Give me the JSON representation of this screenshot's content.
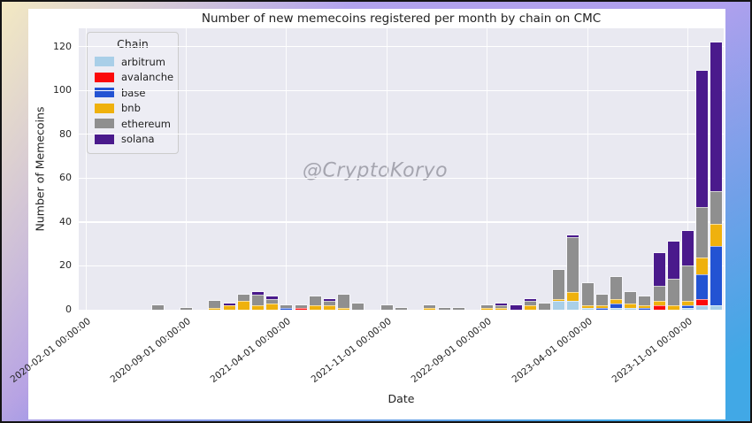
{
  "chart_data": {
    "type": "bar",
    "stacked": true,
    "title": "Number of new memecoins registered per month by chain on CMC",
    "xlabel": "Date",
    "ylabel": "Number of Memecoins",
    "watermark": "@CryptoKoryo",
    "plot_bg": "#e9e9f1",
    "grid": true,
    "ylim": [
      0,
      128.4
    ],
    "yticks": {
      "values": [
        0,
        20,
        40,
        60,
        80,
        100,
        120
      ],
      "labels": [
        "0",
        "20",
        "40",
        "60",
        "80",
        "100",
        "120"
      ]
    },
    "xticks": {
      "slots": [
        0,
        7,
        14,
        21,
        28,
        35,
        42
      ],
      "labels": [
        "2020-02-01 00:00:00",
        "2020-09-01 00:00:00",
        "2021-04-01 00:00:00",
        "2021-11-01 00:00:00",
        "2022-09-01 00:00:00",
        "2023-04-01 00:00:00",
        "2023-11-01 00:00:00"
      ]
    },
    "legend": {
      "title": "Chain",
      "position": "upper-left",
      "entries": [
        {
          "name": "arbitrum",
          "color": "#a9cfe8"
        },
        {
          "name": "avalanche",
          "color": "#fb0a0a"
        },
        {
          "name": "base",
          "color": "#2353d3"
        },
        {
          "name": "bnb",
          "color": "#efb10d"
        },
        {
          "name": "ethereum",
          "color": "#8f8f8f"
        },
        {
          "name": "solana",
          "color": "#4a1a8c"
        }
      ]
    },
    "categories": [
      "2020-02",
      "2020-03",
      "2020-04",
      "2020-05",
      "2020-06",
      "2020-07",
      "2020-08",
      "2020-09",
      "2020-10",
      "2020-11",
      "2020-12",
      "2021-01",
      "2021-02",
      "2021-03",
      "2021-04",
      "2021-05",
      "2021-06",
      "2021-07",
      "2021-08",
      "2021-09",
      "2021-10",
      "2021-11",
      "2021-12",
      "2022-01",
      "2022-03",
      "2022-04",
      "2022-07",
      "2022-08",
      "2022-09",
      "2022-10",
      "2022-11",
      "2022-12",
      "2023-01",
      "2023-02",
      "2023-03",
      "2023-04",
      "2023-05",
      "2023-06",
      "2023-07",
      "2023-08",
      "2023-09",
      "2023-10",
      "2023-11",
      "2023-12",
      "2024-01"
    ],
    "series": [
      {
        "name": "arbitrum",
        "color": "#a9cfe8",
        "values": [
          0,
          0,
          0,
          0,
          0,
          0,
          0,
          0,
          0,
          0,
          0,
          0,
          0,
          0,
          0,
          0,
          0,
          0,
          0,
          0,
          0,
          0,
          0,
          0,
          0,
          0,
          0,
          0,
          0,
          0,
          0,
          0,
          0,
          4,
          4,
          1,
          0,
          1,
          1,
          0,
          0,
          0,
          1,
          2,
          2
        ]
      },
      {
        "name": "avalanche",
        "color": "#fb0a0a",
        "values": [
          0,
          0,
          0,
          0,
          0,
          0,
          0,
          0,
          0,
          0,
          0,
          0,
          0,
          0,
          0,
          1,
          0,
          0,
          0,
          0,
          0,
          0,
          0,
          0,
          0,
          0,
          0,
          0,
          0,
          0,
          0,
          0,
          0,
          0,
          0,
          0,
          0,
          0,
          0,
          0,
          2,
          0,
          0,
          3,
          0
        ]
      },
      {
        "name": "base",
        "color": "#2353d3",
        "values": [
          0,
          0,
          0,
          0,
          0,
          0,
          0,
          0,
          0,
          0,
          0,
          0,
          0,
          0,
          1,
          0,
          0,
          0,
          0,
          0,
          0,
          0,
          0,
          0,
          0,
          0,
          0,
          0,
          0,
          0,
          0,
          0,
          0,
          0,
          0,
          0,
          1,
          2,
          0,
          1,
          0,
          0,
          1,
          11,
          27
        ]
      },
      {
        "name": "bnb",
        "color": "#efb10d",
        "values": [
          0,
          0,
          0,
          0,
          0,
          0,
          0,
          0,
          0,
          1,
          2,
          4,
          2,
          3,
          0,
          0,
          2,
          2,
          1,
          0,
          0,
          0,
          0,
          0,
          1,
          0,
          0,
          0,
          1,
          1,
          0,
          2,
          0,
          1,
          4,
          1,
          1,
          2,
          2,
          1,
          2,
          2,
          2,
          8,
          10
        ]
      },
      {
        "name": "ethereum",
        "color": "#8f8f8f",
        "values": [
          0,
          0,
          0,
          0,
          0,
          2,
          0,
          1,
          0,
          3,
          0,
          3,
          5,
          2,
          1,
          1,
          4,
          2,
          6,
          3,
          0,
          2,
          1,
          0,
          1,
          1,
          1,
          0,
          1,
          1,
          0,
          2,
          3,
          13,
          25,
          10,
          5,
          10,
          5,
          4,
          7,
          12,
          16,
          23,
          15
        ]
      },
      {
        "name": "solana",
        "color": "#4a1a8c",
        "values": [
          0,
          0,
          0,
          0,
          0,
          0,
          0,
          0,
          0,
          0,
          1,
          0,
          1,
          1,
          0,
          0,
          0,
          1,
          0,
          0,
          0,
          0,
          0,
          0,
          0,
          0,
          0,
          0,
          0,
          1,
          2,
          1,
          0,
          0,
          1,
          0,
          0,
          0,
          0,
          0,
          15,
          17,
          16,
          62,
          68
        ]
      }
    ]
  }
}
